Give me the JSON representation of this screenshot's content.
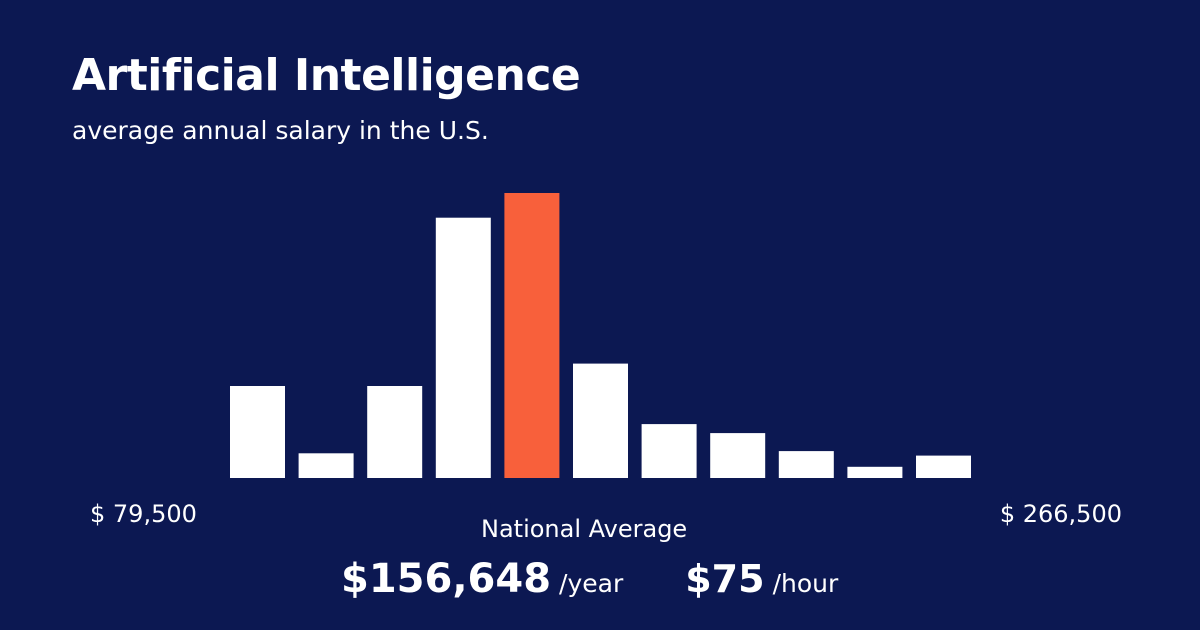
{
  "title": "Artificial Intelligence",
  "subtitle": "average annual salary in the U.S.",
  "range": {
    "min_label": "$ 79,500",
    "max_label": "$ 266,500"
  },
  "national_average": {
    "label": "National Average",
    "yearly_value": "$156,648",
    "yearly_unit": "/year",
    "hourly_value": "$75",
    "hourly_unit": "/hour"
  },
  "colors": {
    "background": "#0c1852",
    "bar": "#ffffff",
    "highlight": "#f8603b"
  },
  "chart_data": {
    "type": "bar",
    "values": [
      41,
      11,
      41,
      116,
      127,
      51,
      24,
      20,
      12,
      5,
      10
    ],
    "highlight_index": 4,
    "ylim": [
      0,
      127
    ]
  }
}
